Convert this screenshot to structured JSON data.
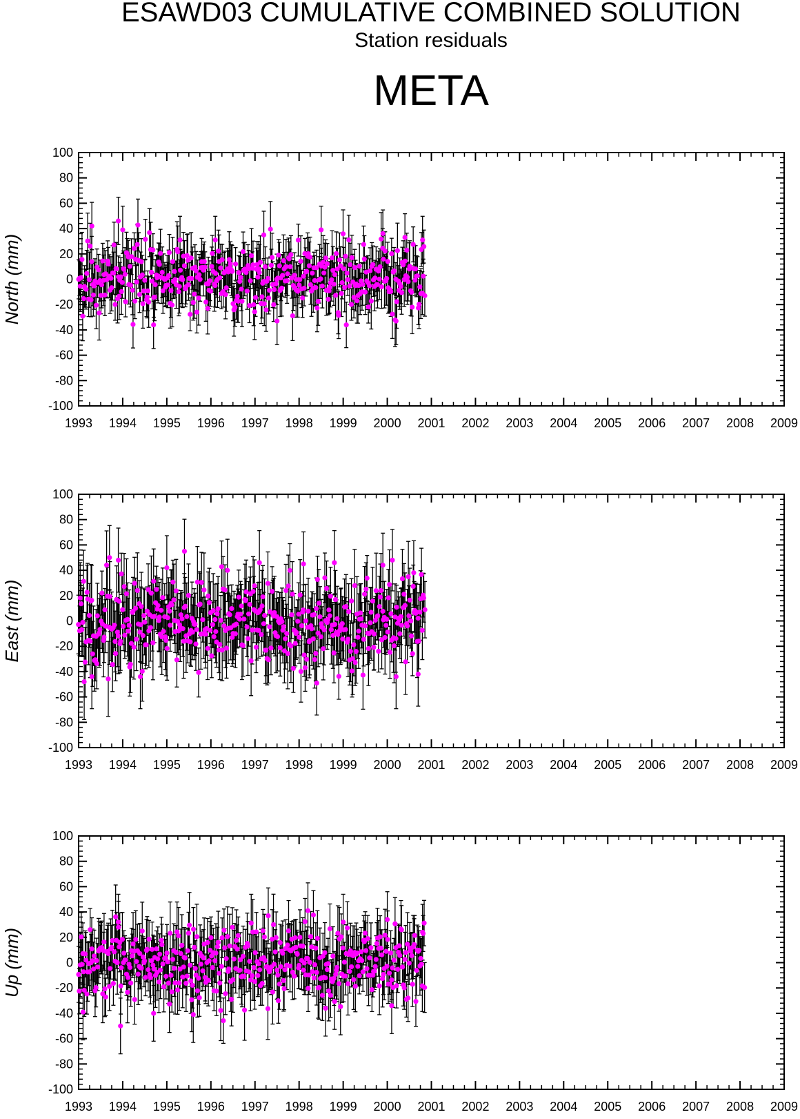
{
  "header": {
    "title": "ESAWD03 CUMULATIVE COMBINED SOLUTION",
    "subtitle": "Station residuals",
    "station": "META"
  },
  "colors": {
    "marker": "#ff00ff",
    "errorbar": "#000000",
    "axis": "#000000"
  },
  "chart_data": [
    {
      "type": "scatter",
      "name": "north",
      "ylabel": "North (mm)",
      "xlim": [
        1993,
        2009
      ],
      "ylim": [
        -100,
        100
      ],
      "x_ticks": [
        "1993",
        "1994",
        "1995",
        "1996",
        "1997",
        "1998",
        "1999",
        "2000",
        "2001",
        "2002",
        "2003",
        "2004",
        "2005",
        "2006",
        "2007",
        "2008",
        "2009"
      ],
      "y_ticks": [
        "100",
        "80",
        "60",
        "40",
        "20",
        "0",
        "-20",
        "-40",
        "-60",
        "-80",
        "-100"
      ],
      "data_range": [
        1993.0,
        2000.85
      ],
      "mean": 0,
      "spread": 13,
      "errorbar_halfwidth": 17,
      "notable_points": [
        {
          "x": 1993.3,
          "y": 42
        },
        {
          "x": 1993.9,
          "y": 46
        },
        {
          "x": 1994.0,
          "y": 39
        },
        {
          "x": 1994.7,
          "y": -36
        },
        {
          "x": 1995.3,
          "y": 31
        },
        {
          "x": 1996.1,
          "y": 31
        },
        {
          "x": 1997.2,
          "y": 35
        },
        {
          "x": 1997.5,
          "y": -33
        },
        {
          "x": 1998.5,
          "y": 39
        },
        {
          "x": 1999.9,
          "y": 36
        },
        {
          "x": 2000.2,
          "y": -33
        },
        {
          "x": 2000.4,
          "y": 33
        },
        {
          "x": 2000.8,
          "y": 31
        }
      ]
    },
    {
      "type": "scatter",
      "name": "east",
      "ylabel": "East (mm)",
      "xlim": [
        1993,
        2009
      ],
      "ylim": [
        -100,
        100
      ],
      "x_ticks": [
        "1993",
        "1994",
        "1995",
        "1996",
        "1997",
        "1998",
        "1999",
        "2000",
        "2001",
        "2002",
        "2003",
        "2004",
        "2005",
        "2006",
        "2007",
        "2008",
        "2009"
      ],
      "y_ticks": [
        "100",
        "80",
        "60",
        "40",
        "20",
        "0",
        "-20",
        "-40",
        "-60",
        "-80",
        "-100"
      ],
      "data_range": [
        1993.0,
        2000.85
      ],
      "mean": 0,
      "spread": 18,
      "errorbar_halfwidth": 23,
      "notable_points": [
        {
          "x": 1993.7,
          "y": 50
        },
        {
          "x": 1993.9,
          "y": 48
        },
        {
          "x": 1994.4,
          "y": -44
        },
        {
          "x": 1995.0,
          "y": 42
        },
        {
          "x": 1995.4,
          "y": 55
        },
        {
          "x": 1997.1,
          "y": 46
        },
        {
          "x": 1998.1,
          "y": 45
        },
        {
          "x": 1998.4,
          "y": -49
        },
        {
          "x": 1998.8,
          "y": 46
        },
        {
          "x": 1999.9,
          "y": 44
        },
        {
          "x": 2000.2,
          "y": -44
        },
        {
          "x": 2000.6,
          "y": 38
        },
        {
          "x": 2000.7,
          "y": -42
        },
        {
          "x": 1993.3,
          "y": -44
        }
      ]
    },
    {
      "type": "scatter",
      "name": "up",
      "ylabel": "Up (mm)",
      "xlim": [
        1993,
        2009
      ],
      "ylim": [
        -100,
        100
      ],
      "x_ticks": [
        "1993",
        "1994",
        "1995",
        "1996",
        "1997",
        "1998",
        "1999",
        "2000",
        "2001",
        "2002",
        "2003",
        "2004",
        "2005",
        "2006",
        "2007",
        "2008",
        "2009"
      ],
      "y_ticks": [
        "100",
        "80",
        "60",
        "40",
        "20",
        "0",
        "-20",
        "-40",
        "-60",
        "-80",
        "-100"
      ],
      "data_range": [
        1993.0,
        2000.85
      ],
      "mean": 0,
      "spread": 15,
      "errorbar_halfwidth": 20,
      "notable_points": [
        {
          "x": 1993.1,
          "y": -39
        },
        {
          "x": 1993.9,
          "y": 32
        },
        {
          "x": 1993.95,
          "y": -50
        },
        {
          "x": 1994.7,
          "y": -40
        },
        {
          "x": 1995.6,
          "y": -41
        },
        {
          "x": 1997.3,
          "y": 37
        },
        {
          "x": 1998.2,
          "y": 41
        },
        {
          "x": 1998.6,
          "y": -36
        },
        {
          "x": 1999.0,
          "y": 32
        },
        {
          "x": 2000.0,
          "y": 34
        },
        {
          "x": 2000.1,
          "y": -34
        },
        {
          "x": 2000.8,
          "y": 24
        }
      ]
    }
  ]
}
